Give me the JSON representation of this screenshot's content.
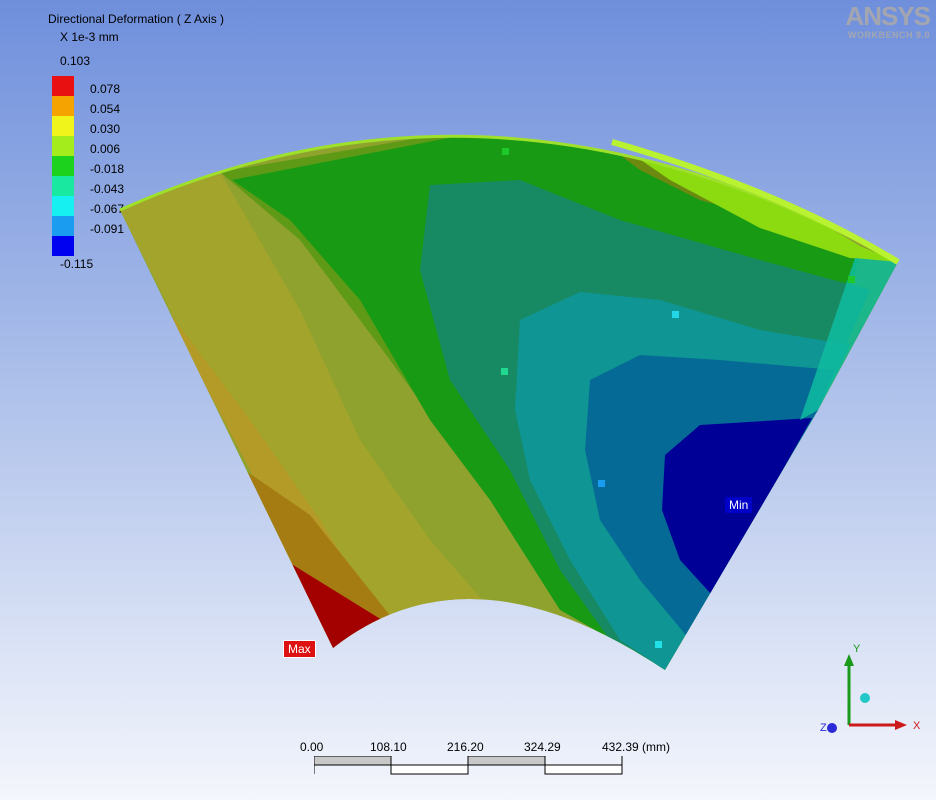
{
  "legend": {
    "title": "Directional Deformation ( Z Axis )",
    "unit": "X 1e-3 mm",
    "max_value": "0.103",
    "min_value": "-0.115",
    "levels": [
      {
        "label": "0.078",
        "color": "#e81010"
      },
      {
        "label": "0.054",
        "color": "#f5a300"
      },
      {
        "label": "0.030",
        "color": "#f1f41a"
      },
      {
        "label": "0.006",
        "color": "#a4ec1c"
      },
      {
        "label": "-0.018",
        "color": "#1cd21c"
      },
      {
        "label": "-0.043",
        "color": "#18e8a0"
      },
      {
        "label": "-0.067",
        "color": "#16f0f0"
      },
      {
        "label": "-0.091",
        "color": "#1a9cf0"
      },
      {
        "label": "",
        "color": "#0000f0"
      }
    ]
  },
  "brand": {
    "name": "ANSYS",
    "subtitle": "WORKBENCH 9.0"
  },
  "probes": {
    "max_label": "Max",
    "min_label": "Min"
  },
  "scale_bar": {
    "ticks": [
      "0.00",
      "108.10",
      "216.20",
      "324.29",
      "432.39 (mm)"
    ]
  },
  "triad": {
    "x_label": "X",
    "y_label": "Y",
    "z_label": "Z"
  }
}
